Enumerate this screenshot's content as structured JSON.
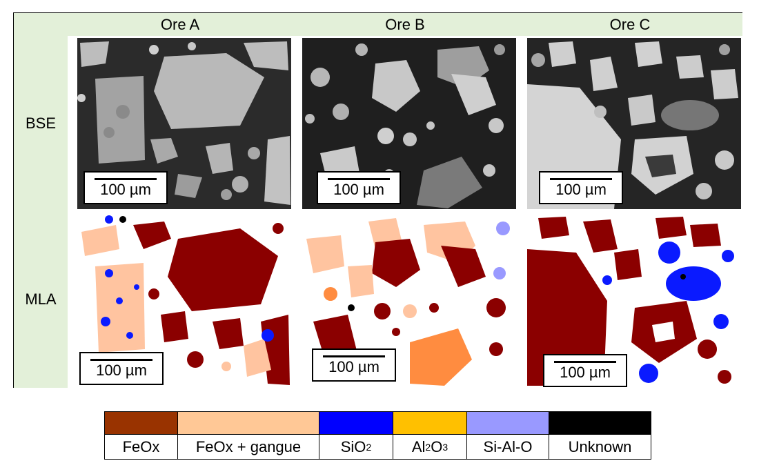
{
  "columns": [
    "Ore A",
    "Ore B",
    "Ore C"
  ],
  "rows": [
    "BSE",
    "MLA"
  ],
  "scale_label": "100 µm",
  "legend": [
    {
      "label": "FeOx",
      "color": "#993300"
    },
    {
      "label": "FeOx + gangue",
      "color": "#ffc896"
    },
    {
      "label_main": "SiO",
      "label_sub": "2",
      "color": "#0000ff"
    },
    {
      "label_main": "Al",
      "label_sub": "2",
      "label_main2": "O",
      "label_sub2": "3",
      "color": "#ffc000"
    },
    {
      "label": "Si-Al-O",
      "color": "#9999ff"
    },
    {
      "label": "Unknown",
      "color": "#000000"
    }
  ],
  "colors": {
    "header_bg": "#e3f0d9",
    "feox": "#8b0000",
    "feox_gangue": "#ffc4a0",
    "sio2": "#0a1aff",
    "al2o3": "#ff8c40",
    "sialo": "#9999ff",
    "unknown": "#000000",
    "bse_bg": "#2a2a2a",
    "bse_grain": "#c8c8c8"
  }
}
